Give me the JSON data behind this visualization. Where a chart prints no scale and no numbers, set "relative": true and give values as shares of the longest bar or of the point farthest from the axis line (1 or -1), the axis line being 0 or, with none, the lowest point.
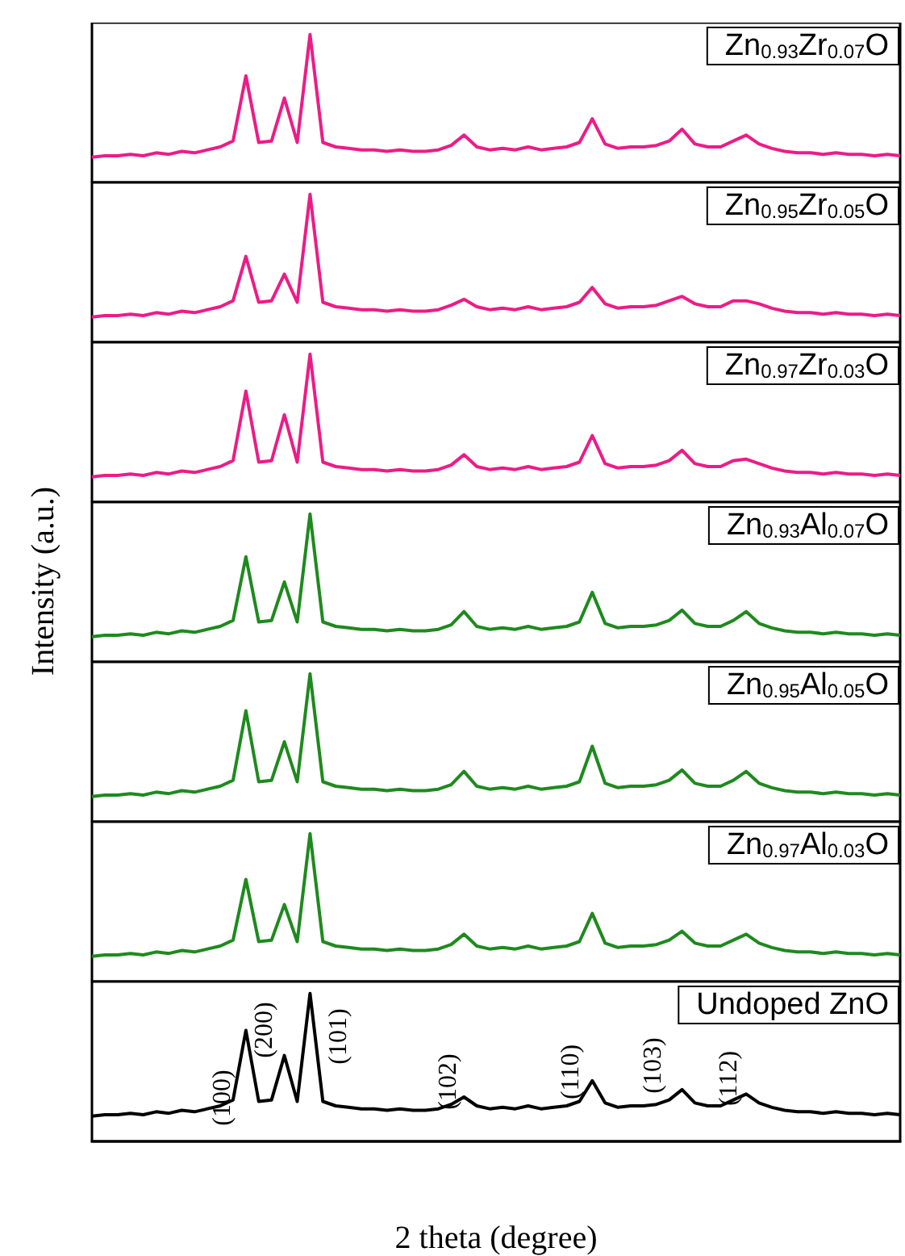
{
  "chart_data": [
    {
      "type": "line",
      "relative": true,
      "legend": "top right",
      "categories": [
        null,
        null,
        null,
        null,
        null,
        null,
        null,
        null,
        null,
        null,
        null,
        null,
        null,
        null,
        null,
        null,
        null,
        null,
        null,
        null,
        null,
        null,
        null,
        null,
        null,
        null,
        null,
        null,
        null,
        null,
        null,
        null,
        null,
        null,
        null,
        null,
        null,
        null,
        null,
        null,
        null,
        null,
        null,
        null,
        null,
        null,
        null,
        null,
        null,
        null,
        null,
        null,
        null,
        null,
        null,
        null,
        null,
        null,
        null,
        null,
        null,
        null,
        null,
        null
      ],
      "series": [
        {
          "name": "Zn$_{0.93}$Zr$_{0.07}$O",
          "color": "#ec1c87",
          "values": [
            0.17,
            0.18,
            0.18,
            0.19,
            0.18,
            0.2,
            0.19,
            0.21,
            0.2,
            0.22,
            0.24,
            0.28,
            0.72,
            0.27,
            0.28,
            0.57,
            0.27,
            1,
            0.27,
            0.24,
            0.23,
            0.22,
            0.22,
            0.21,
            0.22,
            0.21,
            0.21,
            0.22,
            0.25,
            0.32,
            0.24,
            0.22,
            0.23,
            0.22,
            0.24,
            0.22,
            0.23,
            0.24,
            0.27,
            0.43,
            0.26,
            0.23,
            0.24,
            0.24,
            0.25,
            0.28,
            0.36,
            0.26,
            0.24,
            0.24,
            0.28,
            0.32,
            0.26,
            0.23,
            0.21,
            0.2,
            0.2,
            0.19,
            0.2,
            0.19,
            0.19,
            0.18,
            0.19,
            0.18
          ]
        }
      ]
    },
    {
      "type": "line",
      "relative": true,
      "legend": "top right",
      "categories": [
        null,
        null,
        null,
        null,
        null,
        null,
        null,
        null,
        null,
        null,
        null,
        null,
        null,
        null,
        null,
        null,
        null,
        null,
        null,
        null,
        null,
        null,
        null,
        null,
        null,
        null,
        null,
        null,
        null,
        null,
        null,
        null,
        null,
        null,
        null,
        null,
        null,
        null,
        null,
        null,
        null,
        null,
        null,
        null,
        null,
        null,
        null,
        null,
        null,
        null,
        null,
        null,
        null,
        null,
        null,
        null,
        null,
        null,
        null,
        null,
        null,
        null,
        null,
        null
      ],
      "series": [
        {
          "name": "Zn$_{0.95}$Zr$_{0.05}$O",
          "color": "#ec1c87",
          "values": [
            0.17,
            0.18,
            0.18,
            0.19,
            0.18,
            0.2,
            0.19,
            0.21,
            0.2,
            0.22,
            0.24,
            0.28,
            0.58,
            0.27,
            0.28,
            0.46,
            0.27,
            1,
            0.27,
            0.24,
            0.23,
            0.22,
            0.22,
            0.21,
            0.22,
            0.21,
            0.21,
            0.22,
            0.25,
            0.29,
            0.24,
            0.22,
            0.23,
            0.22,
            0.24,
            0.22,
            0.23,
            0.24,
            0.27,
            0.37,
            0.26,
            0.23,
            0.24,
            0.24,
            0.25,
            0.28,
            0.31,
            0.26,
            0.24,
            0.24,
            0.28,
            0.28,
            0.26,
            0.23,
            0.21,
            0.2,
            0.2,
            0.19,
            0.2,
            0.19,
            0.19,
            0.18,
            0.19,
            0.18
          ]
        }
      ]
    },
    {
      "type": "line",
      "relative": true,
      "legend": "top right",
      "categories": [
        null,
        null,
        null,
        null,
        null,
        null,
        null,
        null,
        null,
        null,
        null,
        null,
        null,
        null,
        null,
        null,
        null,
        null,
        null,
        null,
        null,
        null,
        null,
        null,
        null,
        null,
        null,
        null,
        null,
        null,
        null,
        null,
        null,
        null,
        null,
        null,
        null,
        null,
        null,
        null,
        null,
        null,
        null,
        null,
        null,
        null,
        null,
        null,
        null,
        null,
        null,
        null,
        null,
        null,
        null,
        null,
        null,
        null,
        null,
        null,
        null,
        null,
        null,
        null
      ],
      "series": [
        {
          "name": "Zn$_{0.97}$Zr$_{0.03}$O",
          "color": "#ec1c87",
          "values": [
            0.17,
            0.18,
            0.18,
            0.19,
            0.18,
            0.2,
            0.19,
            0.21,
            0.2,
            0.22,
            0.24,
            0.28,
            0.75,
            0.27,
            0.28,
            0.59,
            0.27,
            1,
            0.27,
            0.24,
            0.23,
            0.22,
            0.22,
            0.21,
            0.22,
            0.21,
            0.21,
            0.22,
            0.25,
            0.32,
            0.24,
            0.22,
            0.23,
            0.22,
            0.24,
            0.22,
            0.23,
            0.24,
            0.27,
            0.45,
            0.26,
            0.23,
            0.24,
            0.24,
            0.25,
            0.28,
            0.35,
            0.26,
            0.24,
            0.24,
            0.28,
            0.29,
            0.26,
            0.23,
            0.21,
            0.2,
            0.2,
            0.19,
            0.2,
            0.19,
            0.19,
            0.18,
            0.19,
            0.18
          ]
        }
      ]
    },
    {
      "type": "line",
      "relative": true,
      "legend": "top right",
      "ylabel": "Intensity (a.u.)",
      "categories": [
        null,
        null,
        null,
        null,
        null,
        null,
        null,
        null,
        null,
        null,
        null,
        null,
        null,
        null,
        null,
        null,
        null,
        null,
        null,
        null,
        null,
        null,
        null,
        null,
        null,
        null,
        null,
        null,
        null,
        null,
        null,
        null,
        null,
        null,
        null,
        null,
        null,
        null,
        null,
        null,
        null,
        null,
        null,
        null,
        null,
        null,
        null,
        null,
        null,
        null,
        null,
        null,
        null,
        null,
        null,
        null,
        null,
        null,
        null,
        null,
        null,
        null,
        null,
        null
      ],
      "series": [
        {
          "name": "Zn$_{0.93}$Al$_{0.07}$O",
          "color": "#1e8a1e",
          "values": [
            0.17,
            0.18,
            0.18,
            0.19,
            0.18,
            0.2,
            0.19,
            0.21,
            0.2,
            0.22,
            0.24,
            0.28,
            0.71,
            0.27,
            0.28,
            0.54,
            0.27,
            1,
            0.27,
            0.24,
            0.23,
            0.22,
            0.22,
            0.21,
            0.22,
            0.21,
            0.21,
            0.22,
            0.25,
            0.34,
            0.24,
            0.22,
            0.23,
            0.22,
            0.24,
            0.22,
            0.23,
            0.24,
            0.27,
            0.47,
            0.26,
            0.23,
            0.24,
            0.24,
            0.25,
            0.28,
            0.35,
            0.26,
            0.24,
            0.24,
            0.28,
            0.34,
            0.26,
            0.23,
            0.21,
            0.2,
            0.2,
            0.19,
            0.2,
            0.19,
            0.19,
            0.18,
            0.19,
            0.18
          ]
        }
      ]
    },
    {
      "type": "line",
      "relative": true,
      "legend": "top right",
      "categories": [
        null,
        null,
        null,
        null,
        null,
        null,
        null,
        null,
        null,
        null,
        null,
        null,
        null,
        null,
        null,
        null,
        null,
        null,
        null,
        null,
        null,
        null,
        null,
        null,
        null,
        null,
        null,
        null,
        null,
        null,
        null,
        null,
        null,
        null,
        null,
        null,
        null,
        null,
        null,
        null,
        null,
        null,
        null,
        null,
        null,
        null,
        null,
        null,
        null,
        null,
        null,
        null,
        null,
        null,
        null,
        null,
        null,
        null,
        null,
        null,
        null,
        null,
        null,
        null
      ],
      "series": [
        {
          "name": "Zn$_{0.95}$Al$_{0.05}$O",
          "color": "#1e8a1e",
          "values": [
            0.17,
            0.18,
            0.18,
            0.19,
            0.18,
            0.2,
            0.19,
            0.21,
            0.2,
            0.22,
            0.24,
            0.28,
            0.75,
            0.27,
            0.28,
            0.54,
            0.27,
            1,
            0.27,
            0.24,
            0.23,
            0.22,
            0.22,
            0.21,
            0.22,
            0.21,
            0.21,
            0.22,
            0.25,
            0.34,
            0.24,
            0.22,
            0.23,
            0.22,
            0.24,
            0.22,
            0.23,
            0.24,
            0.27,
            0.51,
            0.26,
            0.23,
            0.24,
            0.24,
            0.25,
            0.28,
            0.35,
            0.26,
            0.24,
            0.24,
            0.28,
            0.34,
            0.26,
            0.23,
            0.21,
            0.2,
            0.2,
            0.19,
            0.2,
            0.19,
            0.19,
            0.18,
            0.19,
            0.18
          ]
        }
      ]
    },
    {
      "type": "line",
      "relative": true,
      "legend": "top right",
      "categories": [
        null,
        null,
        null,
        null,
        null,
        null,
        null,
        null,
        null,
        null,
        null,
        null,
        null,
        null,
        null,
        null,
        null,
        null,
        null,
        null,
        null,
        null,
        null,
        null,
        null,
        null,
        null,
        null,
        null,
        null,
        null,
        null,
        null,
        null,
        null,
        null,
        null,
        null,
        null,
        null,
        null,
        null,
        null,
        null,
        null,
        null,
        null,
        null,
        null,
        null,
        null,
        null,
        null,
        null,
        null,
        null,
        null,
        null,
        null,
        null,
        null,
        null,
        null,
        null
      ],
      "series": [
        {
          "name": "Zn$_{0.97}$Al$_{0.03}$O",
          "color": "#1e8a1e",
          "values": [
            0.17,
            0.18,
            0.18,
            0.19,
            0.18,
            0.2,
            0.19,
            0.21,
            0.2,
            0.22,
            0.24,
            0.28,
            0.69,
            0.27,
            0.28,
            0.52,
            0.27,
            1,
            0.27,
            0.24,
            0.23,
            0.22,
            0.22,
            0.21,
            0.22,
            0.21,
            0.21,
            0.22,
            0.25,
            0.32,
            0.24,
            0.22,
            0.23,
            0.22,
            0.24,
            0.22,
            0.23,
            0.24,
            0.27,
            0.46,
            0.26,
            0.23,
            0.24,
            0.24,
            0.25,
            0.28,
            0.34,
            0.26,
            0.24,
            0.24,
            0.28,
            0.32,
            0.26,
            0.23,
            0.21,
            0.2,
            0.2,
            0.19,
            0.2,
            0.19,
            0.19,
            0.18,
            0.19,
            0.18
          ]
        }
      ]
    },
    {
      "type": "line",
      "relative": true,
      "legend": "top right",
      "xlabel": "2 theta (degree)",
      "annotations": [
        "(100)",
        "(200)",
        "(101)",
        "(102)",
        "(110)",
        "(103)",
        "(112)"
      ],
      "categories": [
        null,
        null,
        null,
        null,
        null,
        null,
        null,
        null,
        null,
        null,
        null,
        null,
        null,
        null,
        null,
        null,
        null,
        null,
        null,
        null,
        null,
        null,
        null,
        null,
        null,
        null,
        null,
        null,
        null,
        null,
        null,
        null,
        null,
        null,
        null,
        null,
        null,
        null,
        null,
        null,
        null,
        null,
        null,
        null,
        null,
        null,
        null,
        null,
        null,
        null,
        null,
        null,
        null,
        null,
        null,
        null,
        null,
        null,
        null,
        null,
        null,
        null,
        null,
        null
      ],
      "series": [
        {
          "name": "Undoped ZnO",
          "color": "#000000",
          "values": [
            0.17,
            0.18,
            0.18,
            0.19,
            0.18,
            0.2,
            0.19,
            0.21,
            0.2,
            0.22,
            0.24,
            0.28,
            0.75,
            0.27,
            0.28,
            0.58,
            0.27,
            1,
            0.27,
            0.24,
            0.23,
            0.22,
            0.22,
            0.21,
            0.22,
            0.21,
            0.21,
            0.22,
            0.25,
            0.3,
            0.24,
            0.22,
            0.23,
            0.22,
            0.24,
            0.22,
            0.23,
            0.24,
            0.27,
            0.41,
            0.26,
            0.23,
            0.24,
            0.24,
            0.25,
            0.28,
            0.35,
            0.26,
            0.24,
            0.24,
            0.28,
            0.32,
            0.26,
            0.23,
            0.21,
            0.2,
            0.2,
            0.19,
            0.2,
            0.19,
            0.19,
            0.18,
            0.19,
            0.18
          ]
        }
      ]
    }
  ]
}
